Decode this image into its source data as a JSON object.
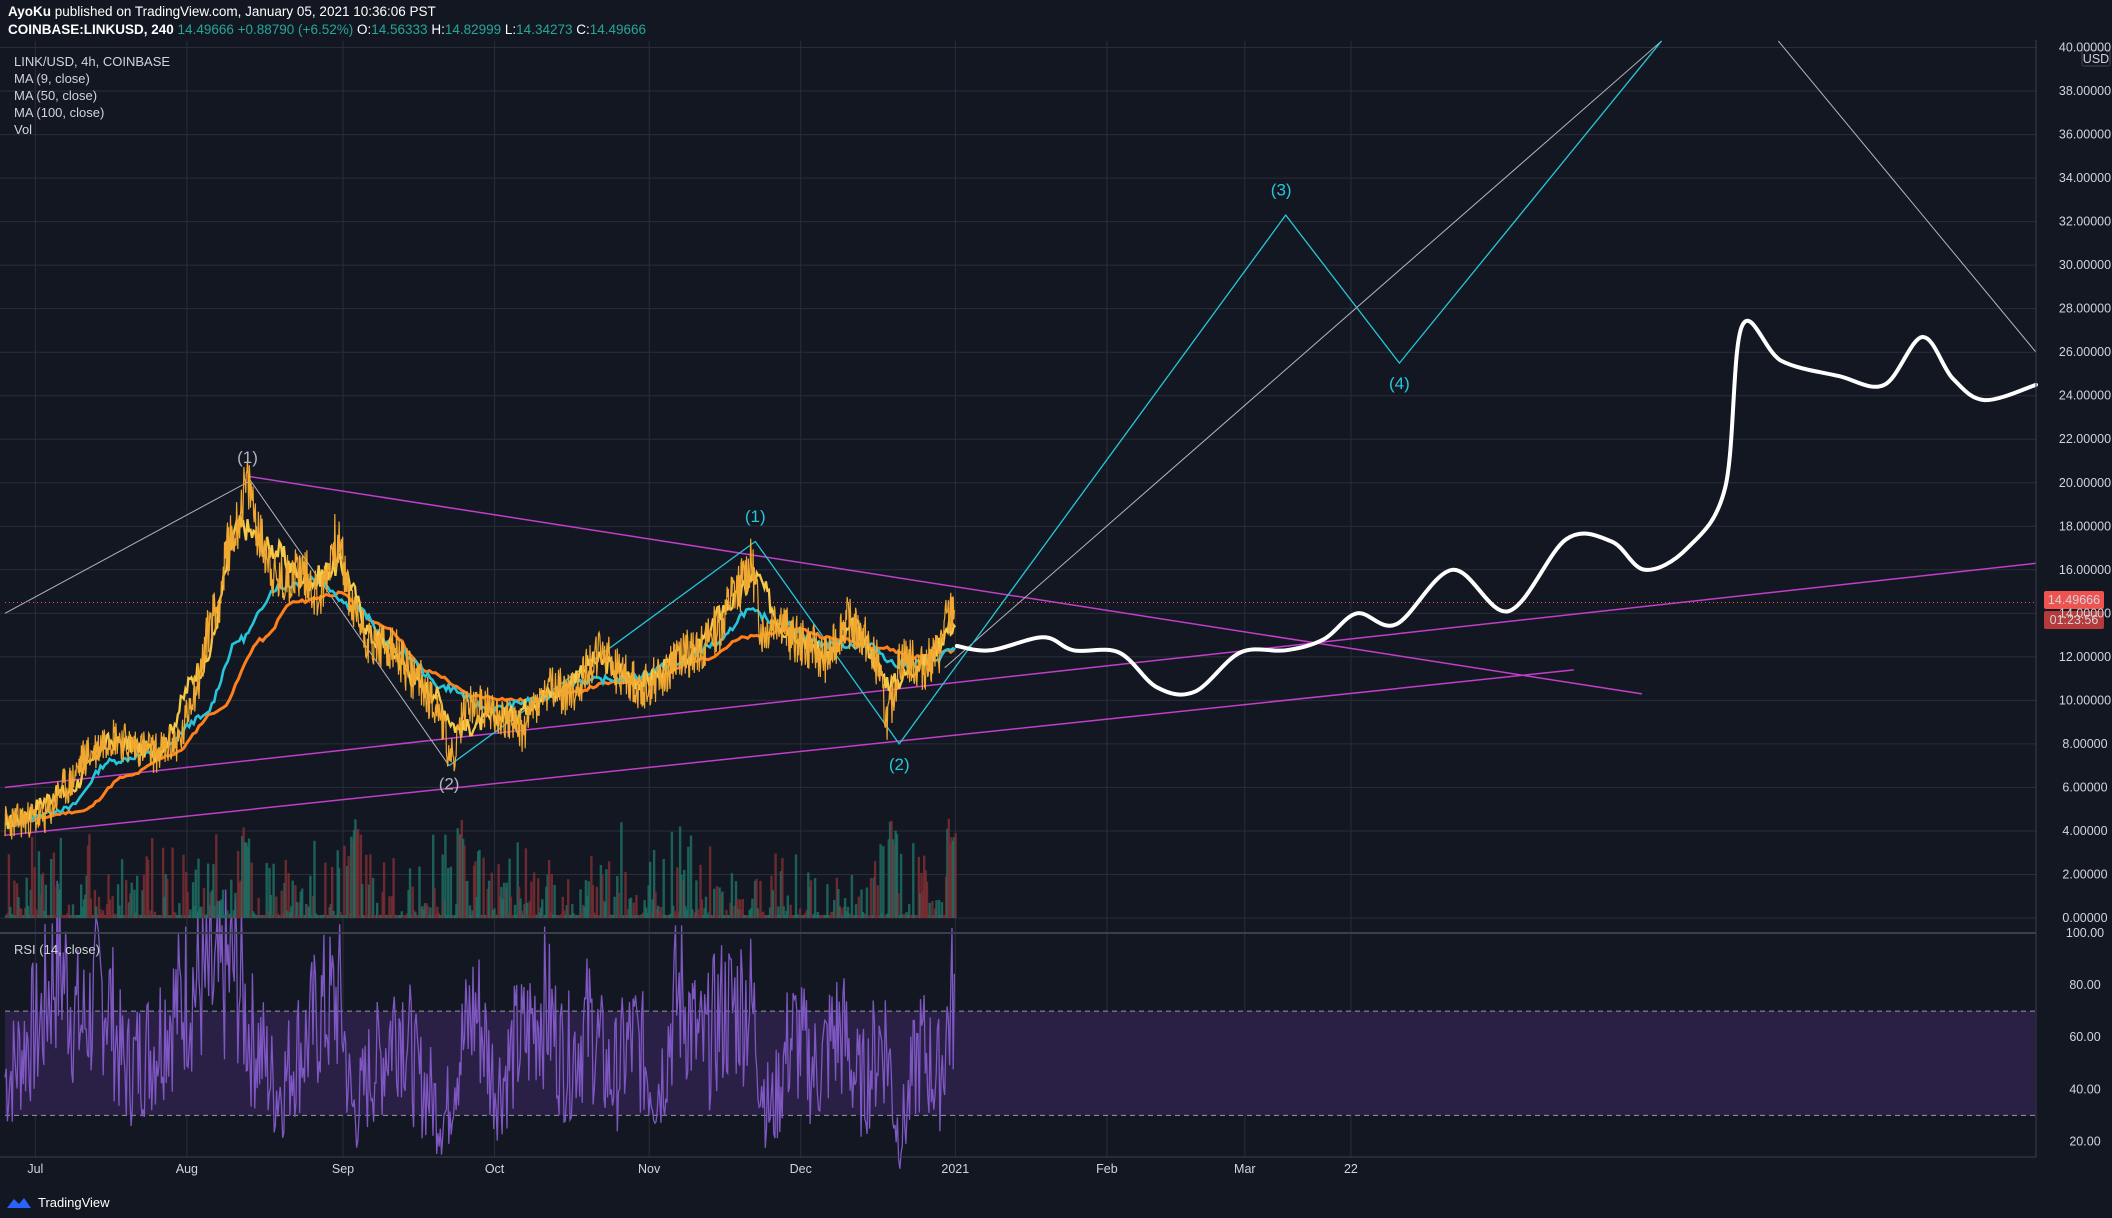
{
  "header": {
    "author": "AyoKu",
    "published_text": "published on TradingView.com, January 05, 2021 10:36:06 PST",
    "symbol": "COINBASE:LINKUSD, 240",
    "last": "14.49666",
    "change": "+0.88790 (+6.52%)",
    "o_label": "O:",
    "o": "14.56333",
    "h_label": "H:",
    "h": "14.82999",
    "l_label": "L:",
    "l": "14.34273",
    "c_label": "C:",
    "c": "14.49666"
  },
  "legend": {
    "title": "LINK/USD, 4h, COINBASE",
    "ma9": "MA (9, close)",
    "ma50": "MA (50, close)",
    "ma100": "MA (100, close)",
    "vol": "Vol"
  },
  "rsi_label": "RSI (14, close)",
  "footer": {
    "brand": "TradingView"
  },
  "colors": {
    "bg": "#131722",
    "grid": "#2a2e39",
    "price_line": "#f0a830",
    "ma9": "#f7c948",
    "ma50": "#26c6da",
    "ma100": "#ff7f1a",
    "wave_cyan": "#26c6da",
    "trend_magenta": "#c13fc9",
    "projection": "#ffffff",
    "rsi_line": "#7e57c2",
    "last_price_tag": "#ef5350"
  },
  "chart_data": {
    "type": "line",
    "title": "LINK/USD, 4h, COINBASE",
    "currency": "USD",
    "x_labels": [
      "Jul",
      "Aug",
      "Sep",
      "Oct",
      "Nov",
      "Dec",
      "2021",
      "Feb",
      "Mar",
      "22"
    ],
    "x_label_t": [
      0.2,
      1.2,
      2.23,
      3.23,
      4.25,
      5.25,
      6.27,
      7.27,
      8.18,
      8.88
    ],
    "t_range": [
      0,
      13.4
    ],
    "y_ticks": [
      0,
      2,
      4,
      6,
      8,
      10,
      12,
      14,
      16,
      18,
      20,
      22,
      24,
      26,
      28,
      30,
      32,
      34,
      36,
      38,
      40
    ],
    "y_tick_labels": [
      "0.00000",
      "2.00000",
      "4.00000",
      "6.00000",
      "8.00000",
      "10.00000",
      "12.00000",
      "14.00000",
      "16.00000",
      "18.00000",
      "20.00000",
      "22.00000",
      "24.00000",
      "26.00000",
      "28.00000",
      "30.00000",
      "32.00000",
      "34.00000",
      "36.00000",
      "38.00000",
      "40.00000"
    ],
    "ylim": [
      0,
      40.3
    ],
    "last_price": 14.49666,
    "last_price_label": "14.49666",
    "countdown": "01:23:56",
    "price_anchors": [
      [
        0.0,
        4.4
      ],
      [
        0.25,
        4.6
      ],
      [
        0.4,
        6.0
      ],
      [
        0.55,
        7.5
      ],
      [
        0.7,
        8.4
      ],
      [
        0.85,
        7.9
      ],
      [
        1.0,
        7.6
      ],
      [
        1.15,
        8.1
      ],
      [
        1.25,
        10.5
      ],
      [
        1.38,
        14.0
      ],
      [
        1.5,
        17.5
      ],
      [
        1.6,
        19.8
      ],
      [
        1.7,
        17.2
      ],
      [
        1.8,
        15.4
      ],
      [
        1.95,
        16.0
      ],
      [
        2.08,
        14.8
      ],
      [
        2.18,
        17.3
      ],
      [
        2.32,
        13.8
      ],
      [
        2.42,
        12.6
      ],
      [
        2.55,
        12.3
      ],
      [
        2.7,
        11.1
      ],
      [
        2.85,
        9.8
      ],
      [
        2.95,
        7.3
      ],
      [
        3.05,
        9.8
      ],
      [
        3.2,
        9.6
      ],
      [
        3.3,
        9.2
      ],
      [
        3.42,
        8.6
      ],
      [
        3.5,
        9.8
      ],
      [
        3.62,
        10.5
      ],
      [
        3.75,
        10.3
      ],
      [
        3.85,
        11.6
      ],
      [
        3.95,
        12.2
      ],
      [
        4.05,
        11.3
      ],
      [
        4.2,
        10.6
      ],
      [
        4.35,
        11.2
      ],
      [
        4.45,
        12.1
      ],
      [
        4.58,
        12.3
      ],
      [
        4.7,
        13.3
      ],
      [
        4.82,
        15.0
      ],
      [
        4.92,
        16.2
      ],
      [
        5.0,
        13.2
      ],
      [
        5.1,
        13.9
      ],
      [
        5.2,
        12.8
      ],
      [
        5.3,
        12.5
      ],
      [
        5.42,
        11.9
      ],
      [
        5.55,
        13.6
      ],
      [
        5.65,
        13.0
      ],
      [
        5.75,
        11.8
      ],
      [
        5.82,
        9.2
      ],
      [
        5.92,
        12.0
      ],
      [
        6.05,
        11.5
      ],
      [
        6.15,
        12.1
      ],
      [
        6.22,
        13.7
      ],
      [
        6.27,
        14.5
      ]
    ],
    "ma9_anchors": [
      [
        0.0,
        4.4
      ],
      [
        0.4,
        5.8
      ],
      [
        0.7,
        8.1
      ],
      [
        1.0,
        7.7
      ],
      [
        1.3,
        11.5
      ],
      [
        1.55,
        18.0
      ],
      [
        1.75,
        17.0
      ],
      [
        2.0,
        15.5
      ],
      [
        2.2,
        16.2
      ],
      [
        2.45,
        12.8
      ],
      [
        2.8,
        10.5
      ],
      [
        3.0,
        8.7
      ],
      [
        3.3,
        9.3
      ],
      [
        3.6,
        10.3
      ],
      [
        3.9,
        11.8
      ],
      [
        4.2,
        10.9
      ],
      [
        4.5,
        12.0
      ],
      [
        4.8,
        14.5
      ],
      [
        4.95,
        15.6
      ],
      [
        5.15,
        13.3
      ],
      [
        5.45,
        12.1
      ],
      [
        5.6,
        13.3
      ],
      [
        5.85,
        10.8
      ],
      [
        6.05,
        11.7
      ],
      [
        6.27,
        13.5
      ]
    ],
    "ma50_anchors": [
      [
        0.0,
        4.3
      ],
      [
        0.4,
        5.0
      ],
      [
        0.7,
        7.2
      ],
      [
        1.0,
        7.6
      ],
      [
        1.3,
        9.2
      ],
      [
        1.55,
        12.8
      ],
      [
        1.8,
        15.2
      ],
      [
        2.05,
        15.6
      ],
      [
        2.3,
        14.3
      ],
      [
        2.6,
        12.2
      ],
      [
        2.9,
        10.6
      ],
      [
        3.2,
        9.6
      ],
      [
        3.5,
        10.0
      ],
      [
        3.8,
        10.9
      ],
      [
        4.1,
        11.0
      ],
      [
        4.4,
        11.6
      ],
      [
        4.7,
        12.6
      ],
      [
        4.9,
        14.1
      ],
      [
        5.1,
        13.6
      ],
      [
        5.4,
        12.6
      ],
      [
        5.7,
        12.5
      ],
      [
        5.9,
        11.6
      ],
      [
        6.1,
        11.8
      ],
      [
        6.27,
        12.4
      ]
    ],
    "ma100_anchors": [
      [
        0.0,
        4.3
      ],
      [
        0.5,
        4.9
      ],
      [
        0.8,
        6.5
      ],
      [
        1.1,
        7.5
      ],
      [
        1.4,
        9.5
      ],
      [
        1.7,
        12.8
      ],
      [
        1.9,
        14.5
      ],
      [
        2.2,
        14.9
      ],
      [
        2.5,
        13.4
      ],
      [
        2.8,
        11.3
      ],
      [
        3.1,
        10.2
      ],
      [
        3.4,
        10.0
      ],
      [
        3.7,
        10.3
      ],
      [
        4.0,
        10.8
      ],
      [
        4.3,
        11.1
      ],
      [
        4.6,
        11.9
      ],
      [
        4.9,
        12.9
      ],
      [
        5.2,
        13.3
      ],
      [
        5.5,
        12.8
      ],
      [
        5.8,
        12.4
      ],
      [
        6.0,
        12.0
      ],
      [
        6.27,
        12.3
      ]
    ],
    "projection_anchors": [
      [
        6.28,
        12.5
      ],
      [
        6.5,
        12.3
      ],
      [
        6.85,
        12.9
      ],
      [
        7.05,
        12.3
      ],
      [
        7.35,
        12.2
      ],
      [
        7.6,
        10.6
      ],
      [
        7.85,
        10.4
      ],
      [
        8.15,
        12.2
      ],
      [
        8.45,
        12.3
      ],
      [
        8.7,
        12.8
      ],
      [
        8.92,
        14.0
      ],
      [
        9.18,
        13.5
      ],
      [
        9.55,
        16.0
      ],
      [
        9.92,
        14.1
      ],
      [
        10.3,
        17.4
      ],
      [
        10.6,
        17.3
      ],
      [
        10.82,
        16.0
      ],
      [
        11.1,
        17.0
      ],
      [
        11.35,
        19.8
      ],
      [
        11.46,
        27.2
      ],
      [
        11.72,
        25.6
      ],
      [
        12.1,
        24.9
      ],
      [
        12.4,
        24.5
      ],
      [
        12.65,
        26.7
      ],
      [
        12.85,
        24.8
      ],
      [
        13.06,
        23.8
      ],
      [
        13.4,
        24.5
      ]
    ],
    "waves_gray": [
      {
        "points": [
          [
            0.0,
            14.0
          ],
          [
            1.62,
            20.1
          ],
          [
            2.93,
            7.0
          ]
        ],
        "labels": [
          {
            "text": "(1)",
            "t": 1.6,
            "v": 20.9
          },
          {
            "text": "(2)",
            "t": 2.93,
            "v": 5.9
          }
        ]
      },
      {
        "points": [
          [
            6.2,
            11.5
          ],
          [
            10.93,
            40.3
          ]
        ]
      },
      {
        "points": [
          [
            11.7,
            40.3
          ],
          [
            13.4,
            26.0
          ]
        ]
      }
    ],
    "waves_cyan": {
      "points": [
        [
          2.93,
          7.0
        ],
        [
          4.95,
          17.3
        ],
        [
          5.9,
          8.0
        ],
        [
          8.45,
          32.3
        ],
        [
          9.2,
          25.5
        ],
        [
          10.93,
          40.3
        ]
      ],
      "labels": [
        {
          "text": "(1)",
          "t": 4.95,
          "v": 18.2
        },
        {
          "text": "(2)",
          "t": 5.9,
          "v": 6.8
        },
        {
          "text": "(3)",
          "t": 8.42,
          "v": 33.2
        },
        {
          "text": "(4)",
          "t": 9.2,
          "v": 24.3
        }
      ]
    },
    "trend_lines": [
      {
        "from": [
          1.6,
          20.3
        ],
        "to": [
          10.8,
          10.3
        ]
      },
      {
        "from": [
          0.0,
          6.0
        ],
        "to": [
          13.4,
          16.3
        ]
      },
      {
        "from": [
          0.0,
          3.8
        ],
        "to": [
          10.35,
          11.4
        ]
      }
    ],
    "rsi": {
      "ylim": [
        14,
        100
      ],
      "y_ticks": [
        20,
        40,
        60,
        80,
        100
      ],
      "y_tick_labels": [
        "20.00",
        "40.00",
        "60.00",
        "80.00",
        "100.00"
      ],
      "overbought": 70,
      "oversold": 30,
      "anchors": [
        [
          0.0,
          45
        ],
        [
          0.2,
          62
        ],
        [
          0.35,
          88
        ],
        [
          0.5,
          65
        ],
        [
          0.65,
          78
        ],
        [
          0.8,
          48
        ],
        [
          0.95,
          55
        ],
        [
          1.1,
          70
        ],
        [
          1.25,
          80
        ],
        [
          1.4,
          78
        ],
        [
          1.5,
          86
        ],
        [
          1.65,
          58
        ],
        [
          1.8,
          40
        ],
        [
          1.95,
          56
        ],
        [
          2.1,
          70
        ],
        [
          2.2,
          74
        ],
        [
          2.3,
          32
        ],
        [
          2.45,
          50
        ],
        [
          2.6,
          68
        ],
        [
          2.75,
          42
        ],
        [
          2.9,
          30
        ],
        [
          3.0,
          55
        ],
        [
          3.1,
          70
        ],
        [
          3.25,
          42
        ],
        [
          3.4,
          58
        ],
        [
          3.55,
          72
        ],
        [
          3.7,
          52
        ],
        [
          3.85,
          64
        ],
        [
          4.0,
          45
        ],
        [
          4.15,
          58
        ],
        [
          4.3,
          42
        ],
        [
          4.45,
          76
        ],
        [
          4.6,
          56
        ],
        [
          4.75,
          70
        ],
        [
          4.9,
          74
        ],
        [
          5.05,
          32
        ],
        [
          5.2,
          60
        ],
        [
          5.35,
          48
        ],
        [
          5.5,
          62
        ],
        [
          5.65,
          42
        ],
        [
          5.8,
          60
        ],
        [
          5.9,
          24
        ],
        [
          6.05,
          55
        ],
        [
          6.15,
          45
        ],
        [
          6.27,
          76
        ]
      ]
    },
    "volume": {
      "ylim": [
        0,
        8
      ]
    }
  }
}
